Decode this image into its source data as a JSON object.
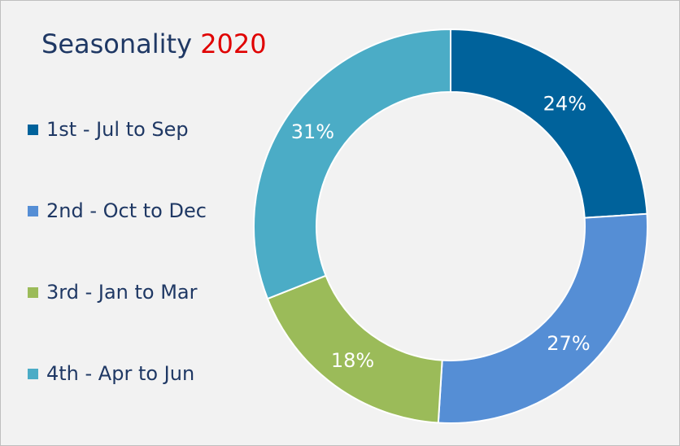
{
  "chart_data": {
    "type": "pie",
    "variant": "donut",
    "title_parts": [
      "Seasonality",
      "2020"
    ],
    "categories": [
      "1st - Jul to Sep",
      "2nd - Oct to Dec",
      "3rd - Jan to Mar",
      "4th - Apr to Jun"
    ],
    "values": [
      24,
      27,
      18,
      31
    ],
    "value_labels": [
      "24%",
      "27%",
      "18%",
      "31%"
    ],
    "colors": [
      "#00629b",
      "#558ed5",
      "#9bbb59",
      "#4bacc6"
    ],
    "title_colors": {
      "text": "#1f3864",
      "year": "#e00000"
    },
    "legend_position": "left"
  }
}
